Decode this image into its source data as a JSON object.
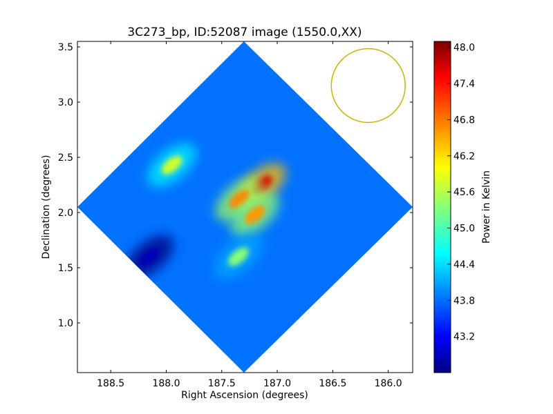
{
  "chart_data": {
    "type": "heatmap",
    "title": "3C273_bp, ID:52087 image (1550.0,XX)",
    "xlabel": "Right Ascension (degrees)",
    "ylabel": "Declination (degrees)",
    "xlim": [
      188.8,
      185.78
    ],
    "ylim": [
      0.55,
      3.55
    ],
    "x_ticks": [
      "188.5",
      "188.0",
      "187.5",
      "187.0",
      "186.5",
      "186.0"
    ],
    "y_ticks": [
      "1.0",
      "1.5",
      "2.0",
      "2.5",
      "3.0",
      "3.5"
    ],
    "grid": false,
    "colormap": "jet",
    "colorbar": {
      "label": "Power in Kelvin",
      "range": [
        42.6,
        48.1
      ],
      "ticks": [
        "43.2",
        "43.8",
        "44.4",
        "45.0",
        "45.6",
        "46.2",
        "46.8",
        "47.4",
        "48.0"
      ]
    },
    "image_extent": {
      "center_ra": 187.3,
      "center_dec": 2.05,
      "ra_extent": [
        188.8,
        185.78
      ],
      "dec_extent": [
        0.55,
        3.55
      ],
      "background_level": 43.9
    },
    "features": [
      {
        "ra": 187.14,
        "dec": 2.25,
        "peak": 47.6,
        "note": "bright core"
      },
      {
        "ra": 187.34,
        "dec": 2.12,
        "peak": 46.7,
        "note": "diagonal ridge"
      },
      {
        "ra": 187.2,
        "dec": 1.98,
        "peak": 46.6,
        "note": "lower ridge"
      },
      {
        "ra": 187.95,
        "dec": 2.43,
        "peak": 45.8,
        "note": "left arm"
      },
      {
        "ra": 187.35,
        "dec": 1.6,
        "peak": 45.4,
        "note": "lower arm"
      },
      {
        "ra": 188.15,
        "dec": 1.6,
        "peak": 42.9,
        "note": "dark spot"
      }
    ],
    "beam_circle": {
      "ra": 186.18,
      "dec": 3.15,
      "color": "#c8b400"
    }
  }
}
